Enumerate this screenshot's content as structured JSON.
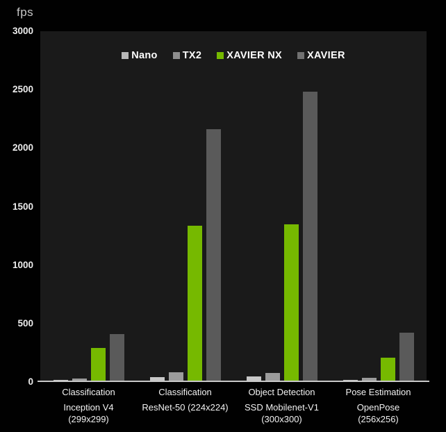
{
  "chart_data": {
    "type": "bar",
    "title": "",
    "ylabel": "fps",
    "xlabel": "",
    "ylim": [
      0,
      3000
    ],
    "yticks": [
      0,
      500,
      1000,
      1500,
      2000,
      2500,
      3000
    ],
    "grid": false,
    "legend_position": "top-center",
    "categories": [
      {
        "task": "Classification",
        "model_lines": [
          "Inception V4",
          "(299x299)"
        ]
      },
      {
        "task": "Classification",
        "model_lines": [
          "ResNet-50 (224x224)"
        ]
      },
      {
        "task": "Object Detection",
        "model_lines": [
          "SSD Mobilenet-V1",
          "(300x300)"
        ]
      },
      {
        "task": "Pose Estimation",
        "model_lines": [
          "OpenPose",
          "(256x256)"
        ]
      }
    ],
    "series": [
      {
        "name": "Nano",
        "color": "#c8c8c8",
        "legend_color": "#b9b9b9",
        "values": [
          11,
          36,
          40,
          14
        ]
      },
      {
        "name": "TX2",
        "color": "#9c9c9c",
        "legend_color": "#8e8e8e",
        "values": [
          24,
          78,
          72,
          32
        ]
      },
      {
        "name": "XAVIER NX",
        "color": "#76b900",
        "legend_color": "#76b900",
        "values": [
          285,
          1330,
          1340,
          200
        ]
      },
      {
        "name": "XAVIER",
        "color": "#5a5a5a",
        "legend_color": "#717171",
        "values": [
          405,
          2155,
          2480,
          415
        ]
      }
    ]
  },
  "colors": {
    "background": "#010101",
    "plot_background": "#1a1a1a",
    "axis_line": "#c9c9c9",
    "tick_text": "#ededed",
    "legend_text": "#ffffff",
    "category_text": "#f2f2f2",
    "accent_green": "#76b900"
  }
}
